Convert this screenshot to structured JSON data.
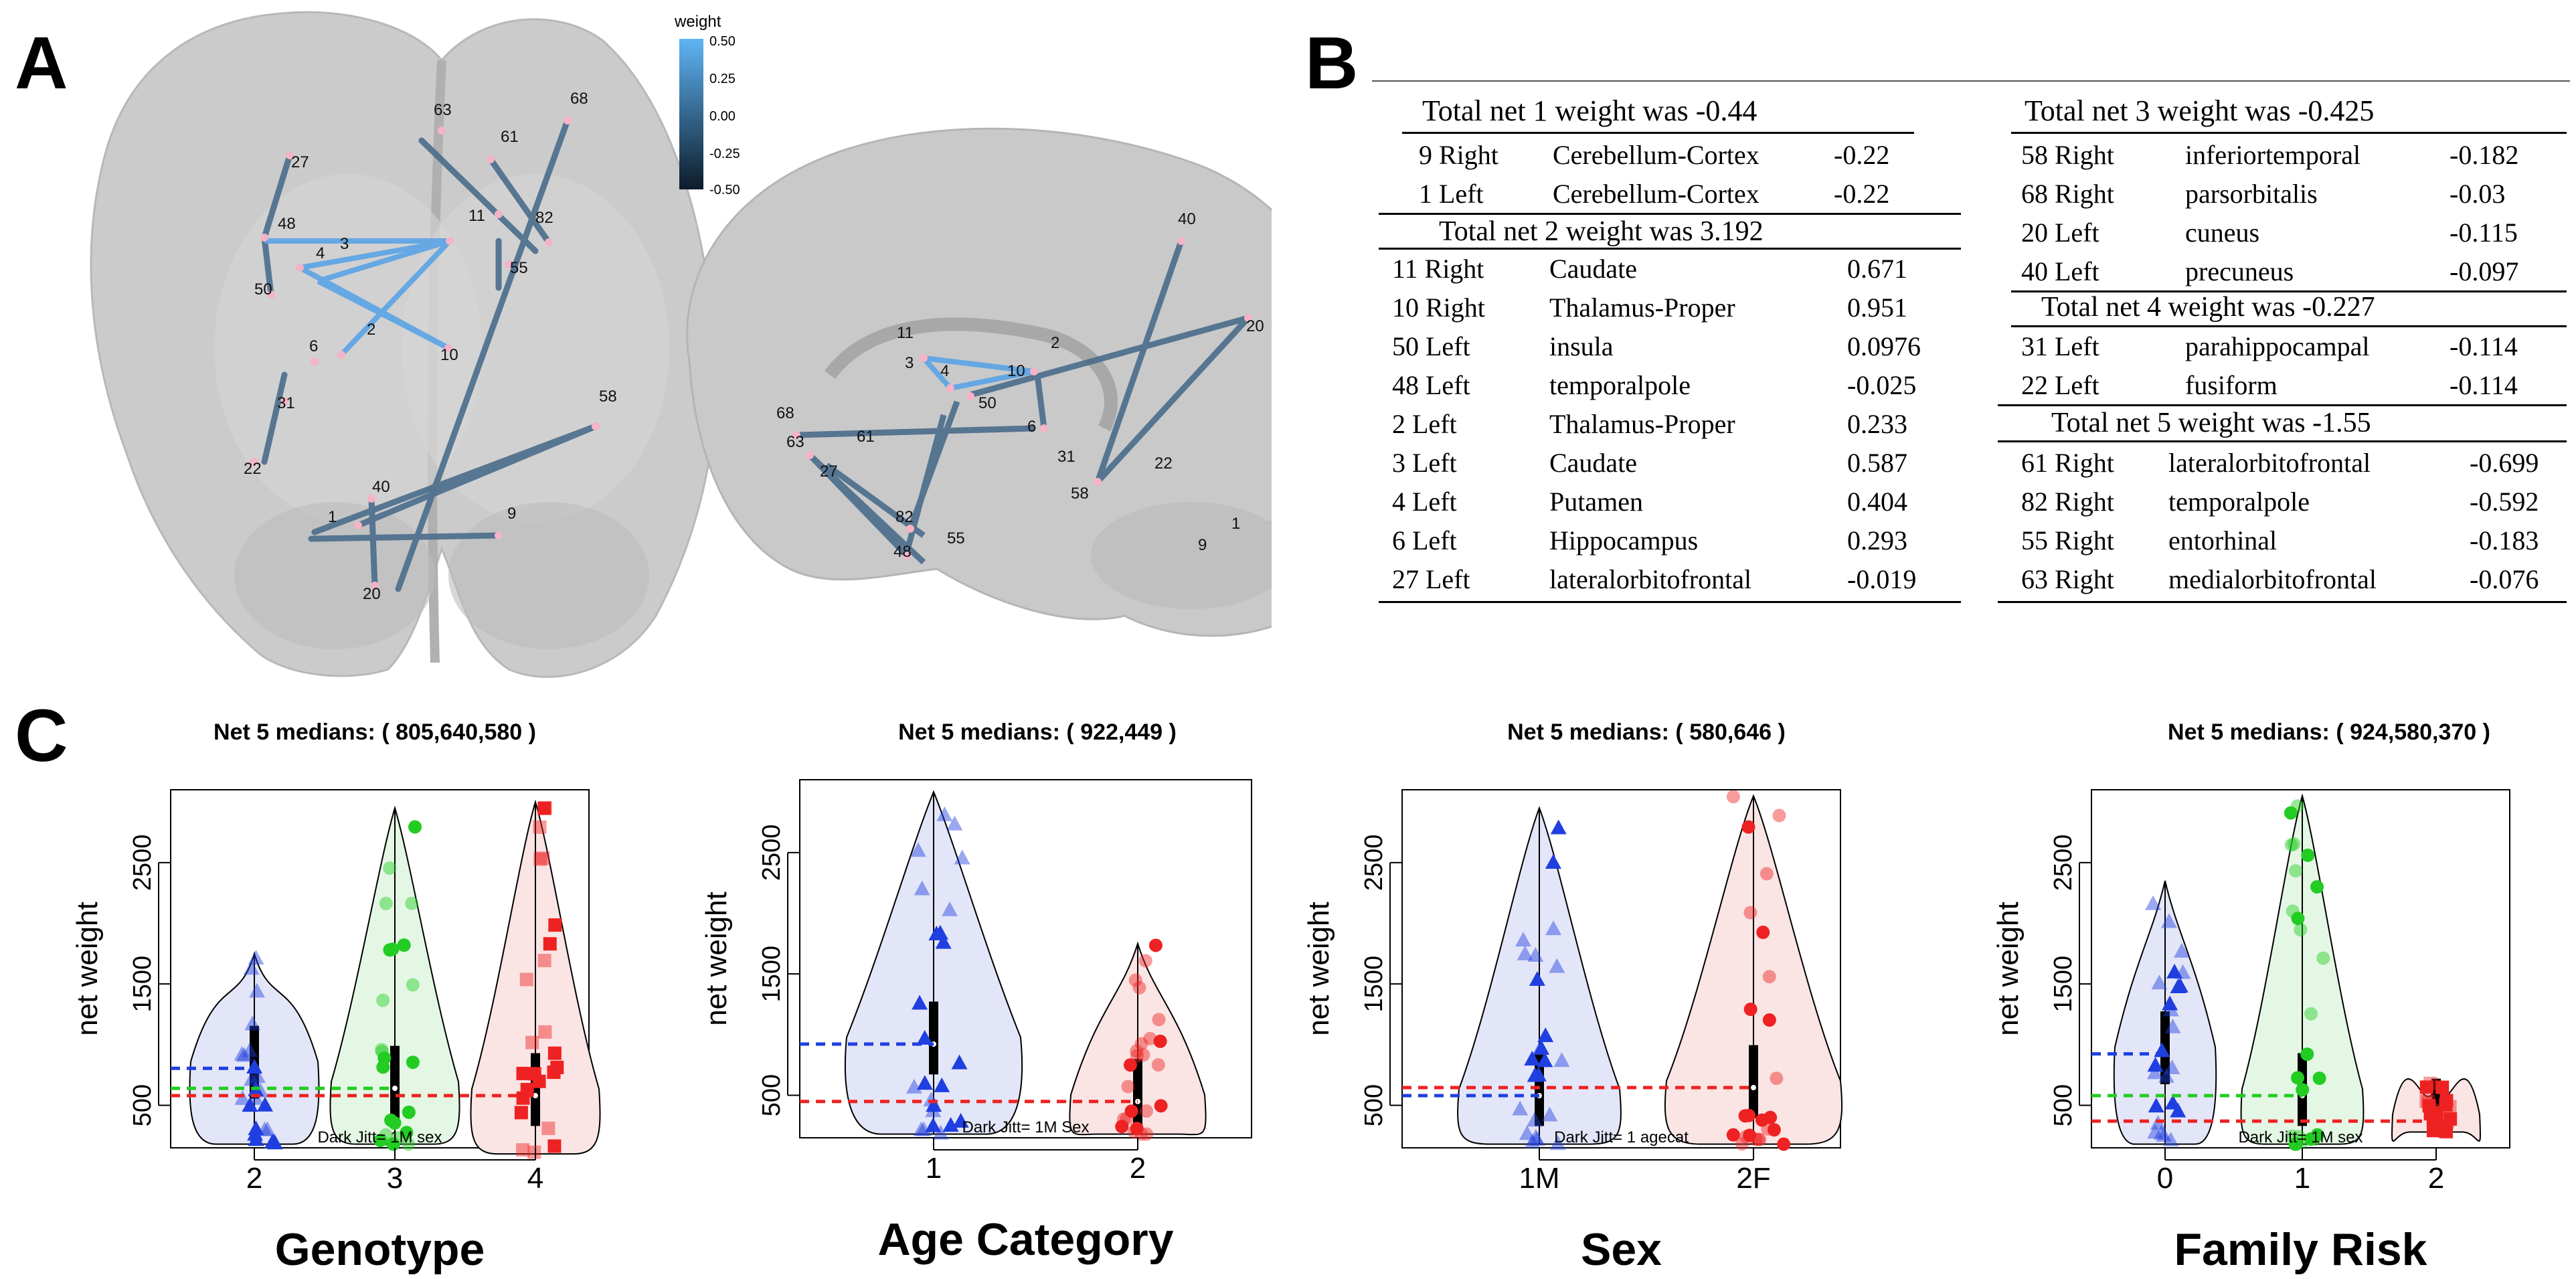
{
  "panels": {
    "a": "A",
    "b": "B",
    "c": "C"
  },
  "colorbar": {
    "title": "weight",
    "ticks": [
      "0.50",
      "0.25",
      "0.00",
      "-0.25",
      "-0.50"
    ]
  },
  "brain_axial": {
    "nodes": [
      {
        "id": "63"
      },
      {
        "id": "61"
      },
      {
        "id": "68"
      },
      {
        "id": "27"
      },
      {
        "id": "48"
      },
      {
        "id": "11"
      },
      {
        "id": "82"
      },
      {
        "id": "3"
      },
      {
        "id": "4"
      },
      {
        "id": "55"
      },
      {
        "id": "50"
      },
      {
        "id": "2"
      },
      {
        "id": "6"
      },
      {
        "id": "10"
      },
      {
        "id": "31"
      },
      {
        "id": "58"
      },
      {
        "id": "22"
      },
      {
        "id": "40"
      },
      {
        "id": "1"
      },
      {
        "id": "9"
      },
      {
        "id": "20"
      }
    ]
  },
  "brain_sagittal": {
    "nodes": [
      {
        "id": "40"
      },
      {
        "id": "20"
      },
      {
        "id": "11"
      },
      {
        "id": "2"
      },
      {
        "id": "3"
      },
      {
        "id": "4"
      },
      {
        "id": "10"
      },
      {
        "id": "50"
      },
      {
        "id": "6"
      },
      {
        "id": "68"
      },
      {
        "id": "63"
      },
      {
        "id": "61"
      },
      {
        "id": "31"
      },
      {
        "id": "22"
      },
      {
        "id": "27"
      },
      {
        "id": "58"
      },
      {
        "id": "82"
      },
      {
        "id": "48"
      },
      {
        "id": "55"
      },
      {
        "id": "1"
      },
      {
        "id": "9"
      }
    ]
  },
  "table_left": {
    "net1_title": "Total net 1 weight was -0.44",
    "net1_rows": [
      {
        "node": "9 Right",
        "region": "Cerebellum-Cortex",
        "weight": "-0.22"
      },
      {
        "node": "1 Left",
        "region": "Cerebellum-Cortex",
        "weight": "-0.22"
      }
    ],
    "net2_title": "Total net 2 weight was 3.192",
    "net2_rows": [
      {
        "node": "11 Right",
        "region": "Caudate",
        "weight": "0.671"
      },
      {
        "node": "10 Right",
        "region": "Thalamus-Proper",
        "weight": "0.951"
      },
      {
        "node": "50 Left",
        "region": "insula",
        "weight": "0.0976"
      },
      {
        "node": "48 Left",
        "region": "temporalpole",
        "weight": "-0.025"
      },
      {
        "node": "2 Left",
        "region": "Thalamus-Proper",
        "weight": "0.233"
      },
      {
        "node": "3 Left",
        "region": "Caudate",
        "weight": "0.587"
      },
      {
        "node": "4 Left",
        "region": "Putamen",
        "weight": "0.404"
      },
      {
        "node": "6 Left",
        "region": "Hippocampus",
        "weight": "0.293"
      },
      {
        "node": "27 Left",
        "region": "lateralorbitofrontal",
        "weight": "-0.019"
      }
    ]
  },
  "table_right": {
    "net3_title": "Total net    3 weight was -0.425",
    "net3_rows": [
      {
        "node": "58 Right",
        "region": "inferiortemporal",
        "weight": "-0.182"
      },
      {
        "node": "68 Right",
        "region": "parsorbitalis",
        "weight": "-0.03"
      },
      {
        "node": "20 Left",
        "region": "cuneus",
        "weight": "-0.115"
      },
      {
        "node": "40 Left",
        "region": "precuneus",
        "weight": "-0.097"
      }
    ],
    "net4_title": "Total net 4 weight was -0.227",
    "net4_rows": [
      {
        "node": "31 Left",
        "region": "parahippocampal",
        "weight": "-0.114"
      },
      {
        "node": "22 Left",
        "region": "fusiform",
        "weight": "-0.114"
      }
    ],
    "net5_title": "Total net 5 weight was -1.55",
    "net5_rows": [
      {
        "node": "61 Right",
        "region": "lateralorbitofrontal",
        "weight": "-0.699"
      },
      {
        "node": "82 Right",
        "region": "temporalpole",
        "weight": "-0.592"
      },
      {
        "node": "55 Right",
        "region": "entorhinal",
        "weight": "-0.183"
      },
      {
        "node": "63 Right",
        "region": "medialorbitofrontal",
        "weight": "-0.076"
      }
    ]
  },
  "chart_data": [
    {
      "type": "violin",
      "title": "Net 5 medians: ( 805,640,580 )",
      "xlabel": "Genotype",
      "ylabel": "net weight",
      "categories": [
        "2",
        "3",
        "4"
      ],
      "medians": [
        805,
        640,
        580
      ],
      "yticks": [
        "500",
        "1500",
        "2500"
      ],
      "ylim": [
        150,
        3100
      ],
      "note": "Dark Jitt= 1M sex",
      "ranges": [
        [
          180,
          1750
        ],
        [
          180,
          2950
        ],
        [
          100,
          3000
        ]
      ]
    },
    {
      "type": "violin",
      "title": "Net 5 medians: ( 922,449 )",
      "xlabel": "Age Category",
      "ylabel": "net weight",
      "categories": [
        "1",
        "2"
      ],
      "medians": [
        922,
        449
      ],
      "yticks": [
        "500",
        "1500",
        "2500"
      ],
      "ylim": [
        150,
        3100
      ],
      "note": "Dark Jitt= 1M Sex",
      "ranges": [
        [
          180,
          3000
        ],
        [
          180,
          1750
        ]
      ]
    },
    {
      "type": "violin",
      "title": "Net 5 medians: ( 580,646 )",
      "xlabel": "Sex",
      "ylabel": "net weight",
      "categories": [
        "1M",
        "2F"
      ],
      "medians": [
        580,
        646
      ],
      "yticks": [
        "500",
        "1500",
        "2500"
      ],
      "ylim": [
        150,
        3100
      ],
      "note": "Dark Jitt= 1 agecat",
      "ranges": [
        [
          180,
          2950
        ],
        [
          180,
          3050
        ]
      ]
    },
    {
      "type": "violin",
      "title": "Net 5 medians: ( 924,580,370 )",
      "xlabel": "Family Risk",
      "ylabel": "net weight",
      "categories": [
        "0",
        "1",
        "2"
      ],
      "medians": [
        924,
        580,
        370
      ],
      "yticks": [
        "500",
        "1500",
        "2500"
      ],
      "ylim": [
        150,
        3100
      ],
      "note": "Dark Jitt= 1M sex",
      "ranges": [
        [
          180,
          2350
        ],
        [
          180,
          3050
        ],
        [
          280,
          700
        ]
      ]
    }
  ]
}
